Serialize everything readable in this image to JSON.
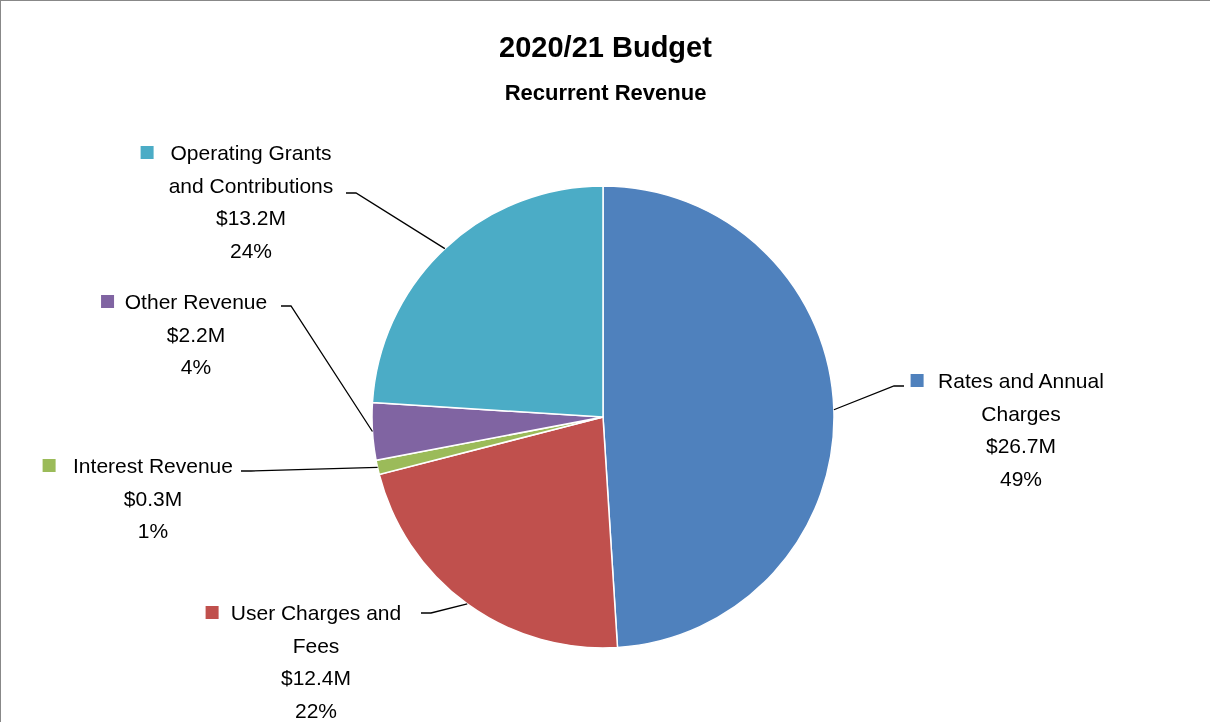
{
  "chart_data": {
    "type": "pie",
    "title": "2020/21 Budget",
    "subtitle": "Recurrent Revenue",
    "categories": [
      "Rates and Annual Charges",
      "User Charges and Fees",
      "Interest Revenue",
      "Other Revenue",
      "Operating Grants and Contributions"
    ],
    "values": [
      49,
      22,
      1,
      4,
      24
    ],
    "legend": "left",
    "colors": [
      "#4f81bd",
      "#c0504d",
      "#9bbb59",
      "#8064a2",
      "#4bacc6"
    ],
    "value_labels": [
      "$26.7M\n49%",
      "$12.4M\n22%",
      "$0.3M\n1%",
      "$2.2M\n4%",
      "$13.2M\n24%"
    ]
  }
}
